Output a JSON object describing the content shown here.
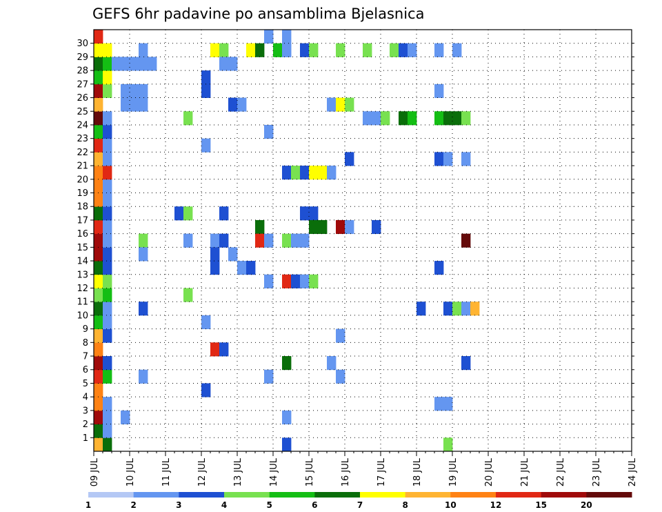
{
  "chart_data": {
    "type": "heatmap",
    "title": "GEFS 6hr padavine po ansamblima Bjelasnica",
    "xlabel": "",
    "ylabel": "",
    "x_tick_labels": [
      "09 JUL",
      "10 JUL",
      "11 JUL",
      "12 JUL",
      "13 JUL",
      "14 JUL",
      "15 JUL",
      "16 JUL",
      "17 JUL",
      "18 JUL",
      "19 JUL",
      "20 JUL",
      "21 JUL",
      "22 JUL",
      "23 JUL",
      "24 JUL"
    ],
    "y_tick_labels": [
      "1",
      "2",
      "3",
      "4",
      "5",
      "6",
      "7",
      "8",
      "9",
      "10",
      "11",
      "12",
      "13",
      "14",
      "15",
      "16",
      "17",
      "18",
      "19",
      "20",
      "21",
      "22",
      "23",
      "24",
      "25",
      "26",
      "27",
      "28",
      "29",
      "30"
    ],
    "x_unit": "6-hour step (0 = 09 JUL 00Z, 4 steps per day)",
    "y_unit": "ensemble member (0 = control)",
    "xlim": [
      0,
      60
    ],
    "ylim": [
      0,
      30
    ],
    "grid": true,
    "colorbar_labels": [
      "1",
      "2",
      "3",
      "4",
      "5",
      "6",
      "7",
      "8",
      "10",
      "12",
      "15",
      "20"
    ],
    "colorbar_colors": [
      "#b4c8f5",
      "#6496f0",
      "#1e50d2",
      "#78e150",
      "#14be14",
      "#0a6e0a",
      "#ffff00",
      "#ffb432",
      "#ff8214",
      "#e12814",
      "#a00a0a",
      "#640a0a"
    ],
    "cells": [
      [
        0,
        0,
        7
      ],
      [
        0,
        1,
        5
      ],
      [
        0,
        2,
        10
      ],
      [
        0,
        3,
        8
      ],
      [
        0,
        4,
        8
      ],
      [
        0,
        5,
        9
      ],
      [
        0,
        6,
        10
      ],
      [
        0,
        7,
        8
      ],
      [
        0,
        8,
        7
      ],
      [
        0,
        9,
        4
      ],
      [
        0,
        10,
        5
      ],
      [
        0,
        11,
        3
      ],
      [
        0,
        12,
        6
      ],
      [
        0,
        13,
        5
      ],
      [
        0,
        14,
        10
      ],
      [
        0,
        15,
        10
      ],
      [
        0,
        16,
        9
      ],
      [
        0,
        17,
        5
      ],
      [
        0,
        18,
        8
      ],
      [
        0,
        19,
        8
      ],
      [
        0,
        20,
        8
      ],
      [
        0,
        21,
        7
      ],
      [
        0,
        22,
        9
      ],
      [
        0,
        23,
        4
      ],
      [
        0,
        24,
        11
      ],
      [
        0,
        25,
        7
      ],
      [
        0,
        26,
        10
      ],
      [
        0,
        27,
        4
      ],
      [
        0,
        28,
        5
      ],
      [
        0,
        29,
        6
      ],
      [
        0,
        30,
        9
      ],
      [
        1,
        0,
        5
      ],
      [
        1,
        1,
        1
      ],
      [
        1,
        2,
        1
      ],
      [
        1,
        3,
        1
      ],
      [
        1,
        5,
        4
      ],
      [
        1,
        6,
        2
      ],
      [
        1,
        8,
        2
      ],
      [
        1,
        9,
        1
      ],
      [
        1,
        10,
        1
      ],
      [
        1,
        11,
        4
      ],
      [
        1,
        12,
        3
      ],
      [
        1,
        13,
        2
      ],
      [
        1,
        14,
        2
      ],
      [
        1,
        15,
        1
      ],
      [
        1,
        16,
        1
      ],
      [
        1,
        17,
        2
      ],
      [
        1,
        18,
        1
      ],
      [
        1,
        19,
        1
      ],
      [
        1,
        20,
        9
      ],
      [
        1,
        21,
        1
      ],
      [
        1,
        22,
        1
      ],
      [
        1,
        23,
        2
      ],
      [
        1,
        24,
        1
      ],
      [
        1,
        26,
        3
      ],
      [
        1,
        27,
        6
      ],
      [
        1,
        28,
        4
      ],
      [
        1,
        29,
        6
      ],
      [
        2,
        28,
        1
      ],
      [
        3,
        25,
        1
      ],
      [
        3,
        2,
        1
      ],
      [
        3,
        26,
        1
      ],
      [
        3,
        28,
        1
      ],
      [
        4,
        26,
        1
      ],
      [
        4,
        25,
        1
      ],
      [
        4,
        28,
        1
      ],
      [
        5,
        29,
        1
      ],
      [
        5,
        28,
        1
      ],
      [
        5,
        26,
        1
      ],
      [
        5,
        25,
        1
      ],
      [
        5,
        15,
        3
      ],
      [
        5,
        14,
        1
      ],
      [
        5,
        10,
        2
      ],
      [
        5,
        5,
        1
      ],
      [
        6,
        28,
        1
      ],
      [
        9,
        17,
        2
      ],
      [
        10,
        17,
        3
      ],
      [
        10,
        24,
        3
      ],
      [
        10,
        11,
        3
      ],
      [
        10,
        15,
        1
      ],
      [
        12,
        26,
        2
      ],
      [
        12,
        27,
        2
      ],
      [
        12,
        22,
        1
      ],
      [
        12,
        9,
        1
      ],
      [
        12,
        4,
        2
      ],
      [
        13,
        29,
        6
      ],
      [
        13,
        15,
        1
      ],
      [
        13,
        14,
        2
      ],
      [
        13,
        13,
        2
      ],
      [
        13,
        7,
        9
      ],
      [
        14,
        29,
        3
      ],
      [
        14,
        28,
        1
      ],
      [
        14,
        17,
        2
      ],
      [
        14,
        15,
        2
      ],
      [
        14,
        7,
        2
      ],
      [
        15,
        28,
        1
      ],
      [
        15,
        25,
        2
      ],
      [
        16,
        25,
        1
      ],
      [
        15,
        14,
        1
      ],
      [
        16,
        13,
        1
      ],
      [
        17,
        13,
        2
      ],
      [
        17,
        29,
        6
      ],
      [
        18,
        29,
        5
      ],
      [
        18,
        16,
        5
      ],
      [
        18,
        15,
        9
      ],
      [
        19,
        15,
        1
      ],
      [
        19,
        12,
        1
      ],
      [
        19,
        23,
        1
      ],
      [
        19,
        30,
        1
      ],
      [
        19,
        5,
        1
      ],
      [
        20,
        29,
        4
      ],
      [
        21,
        29,
        1
      ],
      [
        21,
        30,
        1
      ],
      [
        21,
        15,
        3
      ],
      [
        22,
        15,
        1
      ],
      [
        23,
        15,
        1
      ],
      [
        21,
        12,
        9
      ],
      [
        22,
        12,
        2
      ],
      [
        21,
        20,
        2
      ],
      [
        22,
        20,
        3
      ],
      [
        21,
        6,
        5
      ],
      [
        21,
        2,
        1
      ],
      [
        21,
        0,
        2
      ],
      [
        21,
        29,
        1
      ],
      [
        23,
        17,
        2
      ],
      [
        24,
        17,
        2
      ],
      [
        24,
        16,
        5
      ],
      [
        25,
        16,
        5
      ],
      [
        23,
        20,
        2
      ],
      [
        24,
        20,
        6
      ],
      [
        25,
        20,
        6
      ],
      [
        23,
        12,
        1
      ],
      [
        24,
        12,
        3
      ],
      [
        23,
        29,
        2
      ],
      [
        24,
        29,
        3
      ],
      [
        26,
        25,
        1
      ],
      [
        26,
        20,
        1
      ],
      [
        26,
        6,
        1
      ],
      [
        27,
        25,
        6
      ],
      [
        28,
        25,
        3
      ],
      [
        27,
        29,
        3
      ],
      [
        27,
        16,
        10
      ],
      [
        28,
        16,
        1
      ],
      [
        28,
        21,
        2
      ],
      [
        27,
        8,
        1
      ],
      [
        27,
        5,
        1
      ],
      [
        30,
        29,
        3
      ],
      [
        30,
        24,
        1
      ],
      [
        31,
        24,
        1
      ],
      [
        32,
        24,
        3
      ],
      [
        31,
        16,
        2
      ],
      [
        33,
        29,
        3
      ],
      [
        34,
        29,
        2
      ],
      [
        34,
        24,
        5
      ],
      [
        35,
        24,
        4
      ],
      [
        35,
        29,
        1
      ],
      [
        36,
        10,
        2
      ],
      [
        38,
        29,
        1
      ],
      [
        38,
        26,
        1
      ],
      [
        38,
        24,
        4
      ],
      [
        39,
        24,
        5
      ],
      [
        38,
        21,
        2
      ],
      [
        39,
        21,
        1
      ],
      [
        38,
        13,
        2
      ],
      [
        38,
        3,
        1
      ],
      [
        39,
        3,
        1
      ],
      [
        39,
        10,
        2
      ],
      [
        39,
        0,
        3
      ],
      [
        40,
        24,
        5
      ],
      [
        41,
        24,
        3
      ],
      [
        40,
        29,
        1
      ],
      [
        40,
        10,
        3
      ],
      [
        41,
        10,
        1
      ],
      [
        41,
        6,
        2
      ],
      [
        41,
        15,
        11
      ],
      [
        41,
        21,
        1
      ],
      [
        42,
        10,
        7
      ]
    ]
  }
}
